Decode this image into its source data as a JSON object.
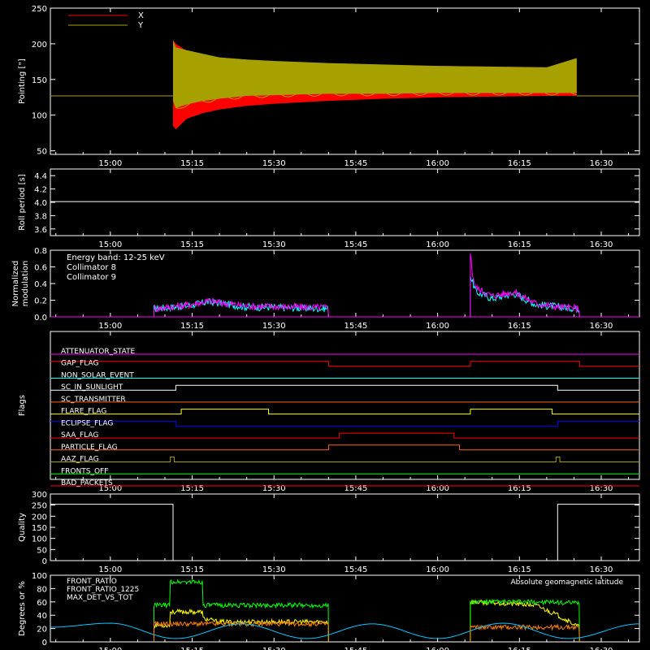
{
  "chart_data": [
    {
      "type": "area",
      "ylabel": "Pointing [\"]",
      "ylim": [
        45,
        250
      ],
      "yticks": [
        50,
        100,
        150,
        200,
        250
      ],
      "x_ticks": [
        "15:00",
        "15:15",
        "15:30",
        "15:45",
        "16:00",
        "16:15",
        "16:30"
      ],
      "x_tick_minutes": [
        0,
        15,
        30,
        45,
        60,
        75,
        90
      ],
      "xlim_minutes": [
        -11,
        97
      ],
      "legend": [
        {
          "name": "X",
          "color": "#ff0000"
        },
        {
          "name": "Y",
          "color": "#a6a000"
        }
      ],
      "series": [
        {
          "name": "X",
          "color": "#ff0000",
          "x_minutes": [
            11.5,
            12,
            14,
            17,
            20,
            25,
            30,
            40,
            50,
            60,
            70,
            80,
            85.5
          ],
          "lower": [
            85,
            80,
            95,
            103,
            108,
            113,
            116,
            120,
            123,
            125,
            126,
            127,
            127
          ],
          "upper": [
            205,
            200,
            190,
            184,
            180,
            177,
            175,
            172,
            170,
            169,
            168,
            167,
            178
          ]
        },
        {
          "name": "Y",
          "color": "#a6a000",
          "x_minutes": [
            11.5,
            12,
            14,
            17,
            20,
            25,
            30,
            40,
            50,
            60,
            70,
            80,
            85.5
          ],
          "lower": [
            120,
            110,
            115,
            120,
            123,
            127,
            128,
            130,
            130,
            131,
            131,
            131,
            131
          ],
          "upper": [
            205,
            195,
            191,
            186,
            181,
            178,
            176,
            173,
            171,
            169,
            168,
            167,
            180
          ]
        }
      ],
      "baseline": 127
    },
    {
      "type": "line",
      "ylabel": "Roll period [s]",
      "ylim": [
        3.5,
        4.5
      ],
      "yticks": [
        3.6,
        3.8,
        4.0,
        4.2,
        4.4
      ],
      "x_ticks": [
        "15:00",
        "15:15",
        "15:30",
        "15:45",
        "16:00",
        "16:15",
        "16:30"
      ],
      "series": [
        {
          "name": "",
          "color": "#ffffff",
          "value": 4.01
        }
      ]
    },
    {
      "type": "line",
      "ylabel": "Normalized modulation",
      "ylim": [
        0,
        0.8
      ],
      "yticks": [
        0.0,
        0.2,
        0.4,
        0.6,
        0.8
      ],
      "x_ticks": [
        "15:00",
        "15:15",
        "15:30",
        "15:45",
        "16:00",
        "16:15",
        "16:30"
      ],
      "annotation": "Energy band: 12-25 keV",
      "series": [
        {
          "name": "Collimator 8",
          "color": "#00ffff",
          "segments": [
            {
              "x": [
                8,
                14,
                18,
                25,
                32,
                40
              ],
              "y": [
                0.1,
                0.13,
                0.18,
                0.12,
                0.11,
                0.1
              ]
            },
            {
              "x": [
                66,
                67,
                70,
                74,
                78,
                82,
                86
              ],
              "y": [
                0.5,
                0.3,
                0.22,
                0.28,
                0.15,
                0.12,
                0.1
              ]
            }
          ]
        },
        {
          "name": "Collimator 9",
          "color": "#ff00ff",
          "segments": [
            {
              "x": [
                8,
                14,
                18,
                25,
                32,
                40
              ],
              "y": [
                0.1,
                0.14,
                0.19,
                0.13,
                0.12,
                0.11
              ]
            },
            {
              "x": [
                66,
                66.3,
                67,
                70,
                74,
                78,
                82,
                86
              ],
              "y": [
                0.8,
                0.55,
                0.35,
                0.25,
                0.3,
                0.16,
                0.12,
                0.1
              ]
            }
          ]
        }
      ]
    },
    {
      "type": "table",
      "ylabel": "Flags",
      "x_ticks": [
        "15:00",
        "15:15",
        "15:30",
        "15:45",
        "16:00",
        "16:15",
        "16:30"
      ],
      "flags": [
        {
          "name": "ATTENUATOR_STATE",
          "color": "#ff00ff",
          "transitions": []
        },
        {
          "name": "GAP_FLAG",
          "color": "#ff0000",
          "transitions": [
            40,
            66,
            86
          ]
        },
        {
          "name": "NON_SOLAR_EVENT",
          "color": "#00ffff",
          "transitions": []
        },
        {
          "name": "SC_IN_SUNLIGHT",
          "color": "#ffffff",
          "transitions": [
            12,
            82
          ]
        },
        {
          "name": "SC_TRANSMITTER",
          "color": "#ff6020",
          "transitions": []
        },
        {
          "name": "FLARE_FLAG",
          "color": "#ffff00",
          "transitions": [
            13,
            29,
            66,
            81
          ]
        },
        {
          "name": "ECLIPSE_FLAG",
          "color": "#0000ff",
          "transitions": [
            12,
            82
          ]
        },
        {
          "name": "SAA_FLAG",
          "color": "#ff0000",
          "transitions": [
            42,
            63
          ]
        },
        {
          "name": "PARTICLE_FLAG",
          "color": "#ff6020",
          "transitions": [
            40,
            64
          ]
        },
        {
          "name": "AAZ_FLAG",
          "color": "#a6a000",
          "transitions": [
            11,
            11.7,
            81.7,
            82.4
          ]
        },
        {
          "name": "FRONTS_OFF",
          "color": "#00ff00",
          "transitions": []
        },
        {
          "name": "BAD_PACKETS",
          "color": "#ff0000",
          "transitions": []
        }
      ]
    },
    {
      "type": "line",
      "ylabel": "Quality",
      "ylim": [
        0,
        300
      ],
      "yticks": [
        0,
        50,
        100,
        150,
        200,
        250,
        300
      ],
      "x_ticks": [
        "15:00",
        "15:15",
        "15:30",
        "15:45",
        "16:00",
        "16:15",
        "16:30"
      ],
      "series": [
        {
          "name": "",
          "color": "#ffffff",
          "x": [
            -11,
            11.5,
            11.5,
            82,
            82,
            97
          ],
          "y": [
            254,
            254,
            0,
            0,
            254,
            254
          ]
        }
      ]
    },
    {
      "type": "line",
      "ylabel": "Degrees or %",
      "ylim": [
        0,
        100
      ],
      "yticks": [
        0,
        20,
        40,
        60,
        80,
        100
      ],
      "x_ticks": [
        "15:00",
        "15:15",
        "15:30",
        "15:45",
        "16:00",
        "16:15",
        "16:30"
      ],
      "annotation": "Absolute geomagnetic latitude",
      "series": [
        {
          "name": "FRONT_RATIO",
          "color": "#ffff00",
          "segments": [
            {
              "x": [
                8,
                11,
                11,
                17,
                17,
                20,
                40
              ],
              "y": [
                25,
                25,
                45,
                45,
                35,
                30,
                30
              ]
            },
            {
              "x": [
                66,
                72,
                78,
                82,
                86
              ],
              "y": [
                60,
                58,
                55,
                40,
                22
              ]
            }
          ]
        },
        {
          "name": "FRONT_RATIO_1225",
          "color": "#00ff00",
          "segments": [
            {
              "x": [
                8,
                11,
                11,
                17,
                17,
                40
              ],
              "y": [
                55,
                55,
                90,
                90,
                55,
                55
              ]
            },
            {
              "x": [
                66,
                78,
                86
              ],
              "y": [
                60,
                60,
                58
              ]
            }
          ]
        },
        {
          "name": "MAX_DET_VS_TOT",
          "color": "#ff8000",
          "segments": [
            {
              "x": [
                8,
                40
              ],
              "y": [
                27,
                27
              ]
            },
            {
              "x": [
                66,
                86
              ],
              "y": [
                22,
                22
              ]
            }
          ]
        },
        {
          "name": "Absolute geomagnetic latitude",
          "color": "#00c8ff",
          "x": [
            -11,
            0,
            12,
            24,
            36,
            48,
            60,
            72,
            84,
            97
          ],
          "y": [
            22,
            28,
            5,
            27,
            5,
            27,
            5,
            28,
            5,
            27
          ]
        }
      ]
    }
  ]
}
